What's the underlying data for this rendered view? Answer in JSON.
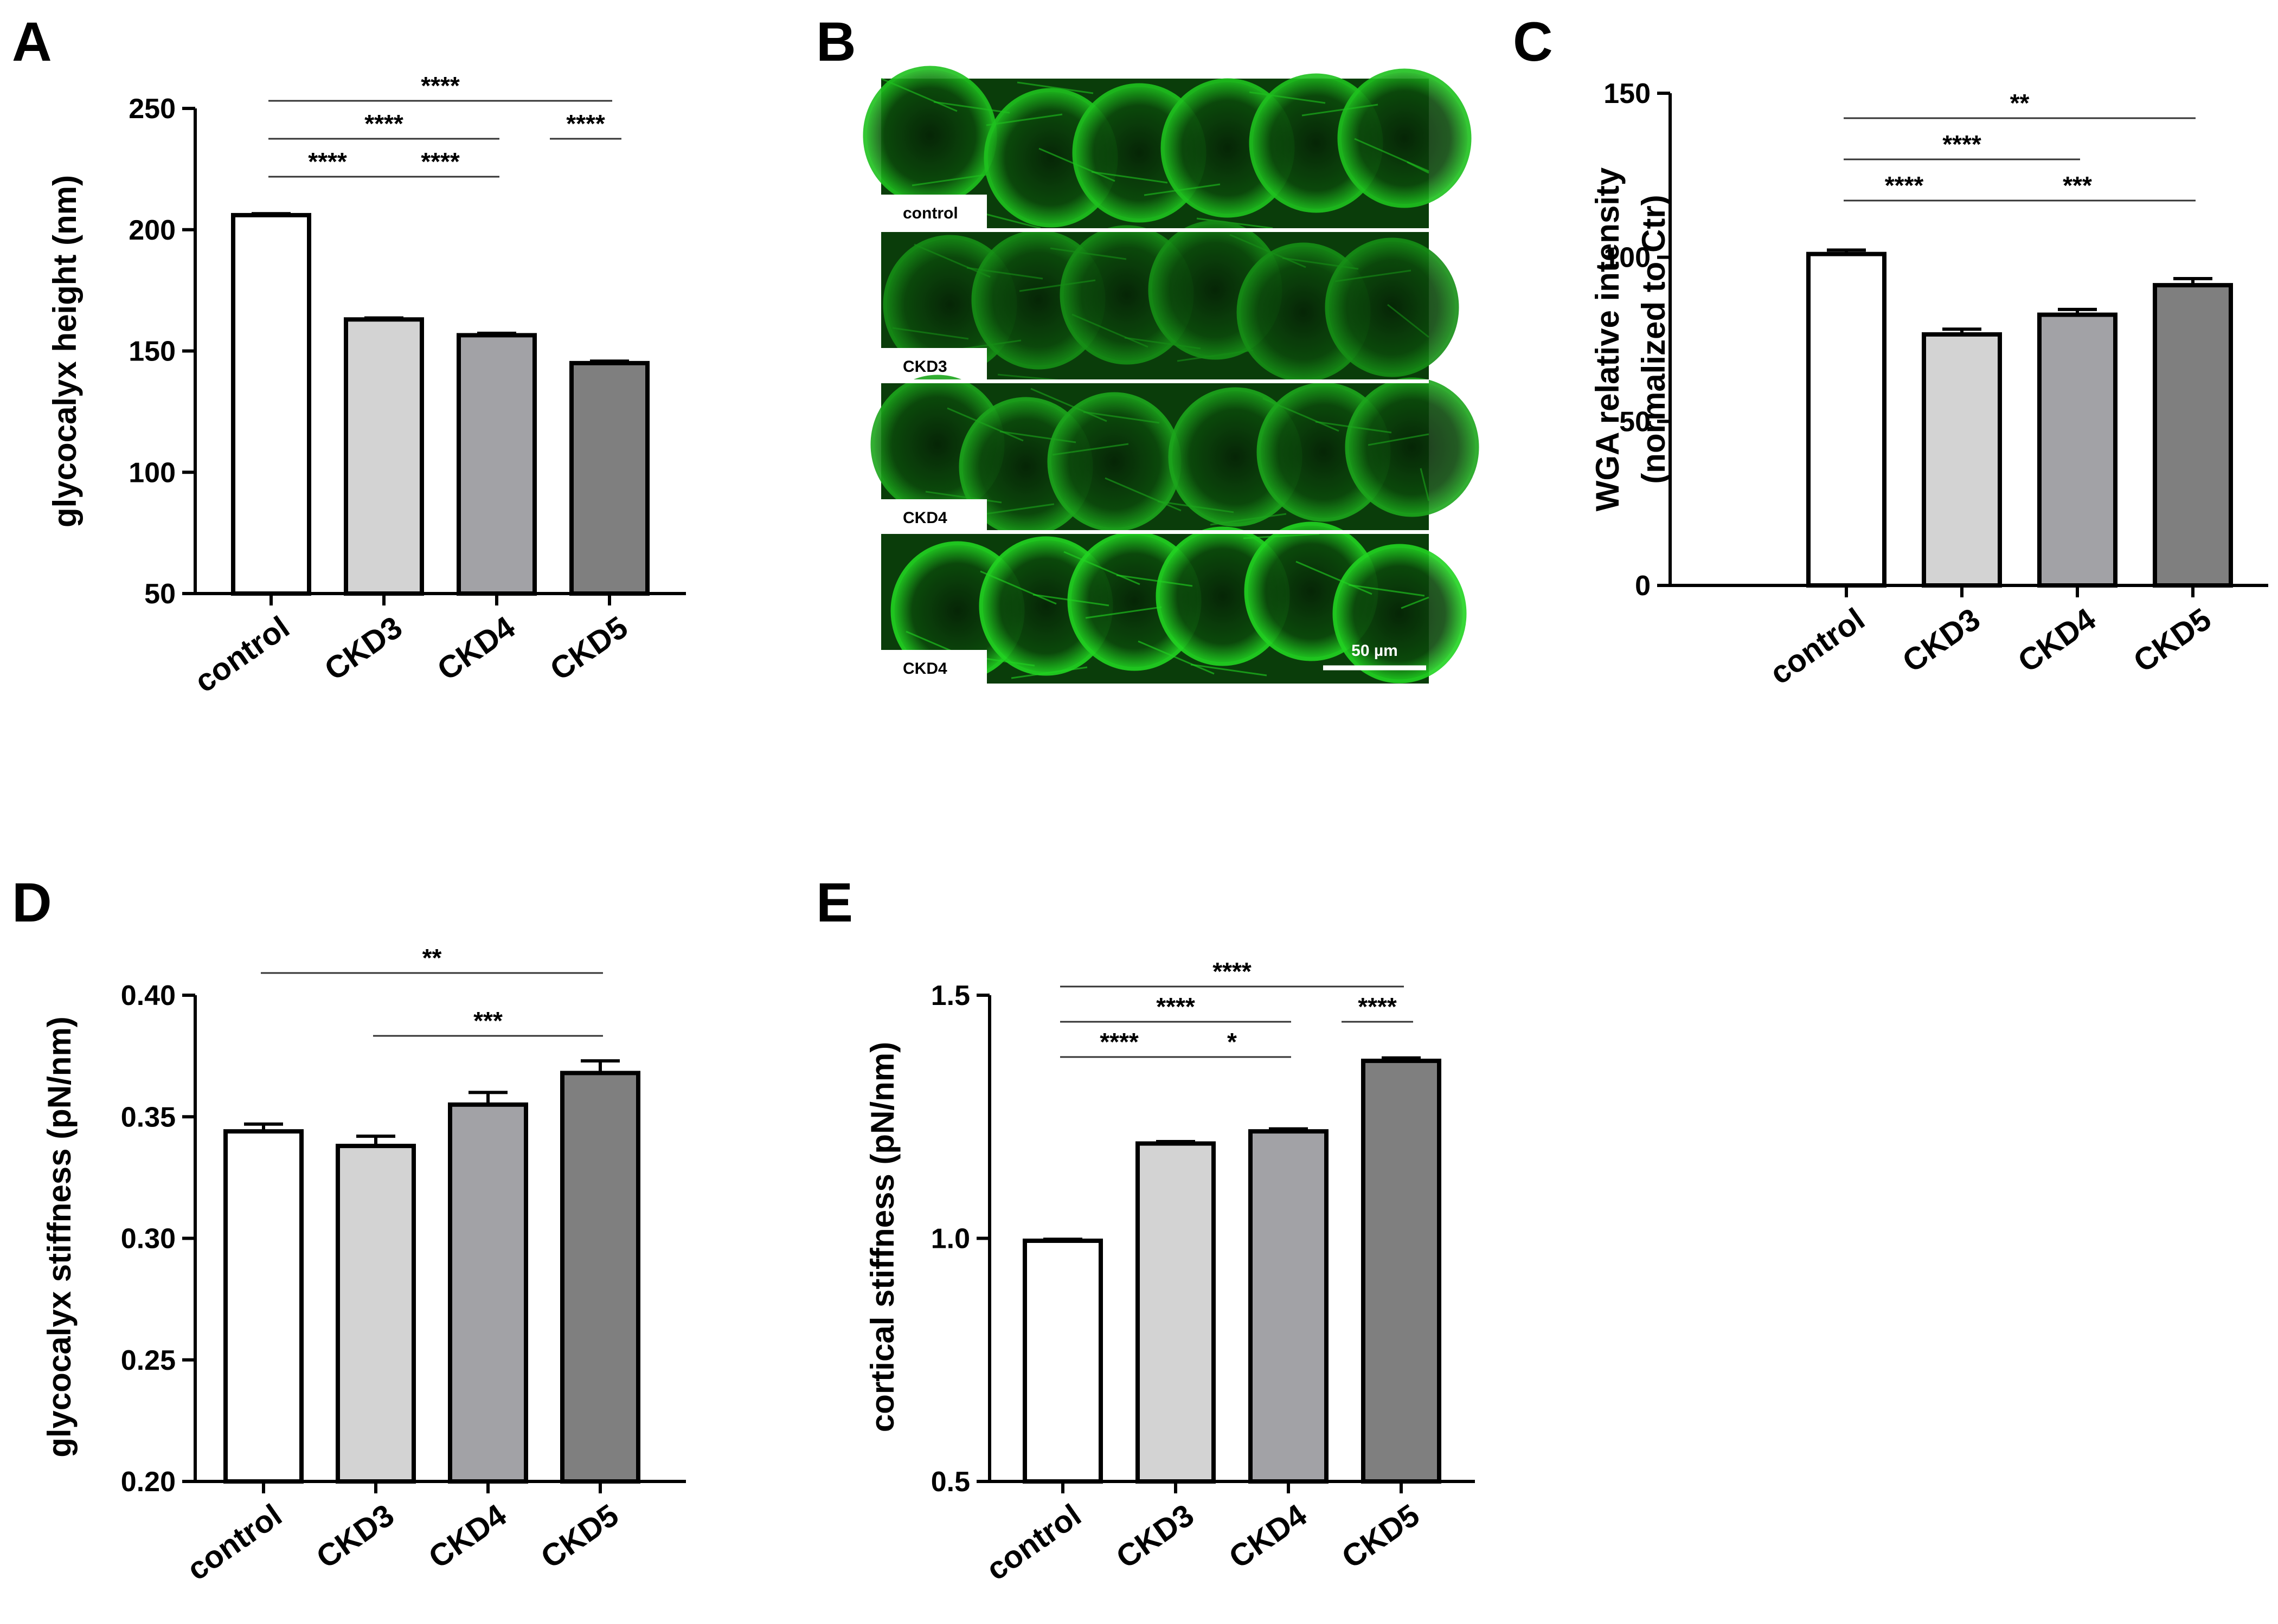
{
  "panel_letters": {
    "a": "A",
    "b": "B",
    "c": "C",
    "d": "D",
    "e": "E"
  },
  "palette": {
    "control": "#ffffff",
    "CKD3": "#d3d3d3",
    "CKD4": "#a2a2a6",
    "CKD5": "#7f7f7f",
    "ink": "#000000"
  },
  "micrograph": {
    "panels": [
      {
        "label": "control",
        "color": "#1fc21f"
      },
      {
        "label": "CKD3",
        "color": "#168f16"
      },
      {
        "label": "CKD4",
        "color": "#1ca61c"
      },
      {
        "label": "CKD4",
        "color": "#22d422"
      }
    ],
    "scale_bar": "50 µm"
  },
  "chart_data": [
    {
      "panel": "A",
      "type": "bar",
      "categories": [
        "control",
        "CKD3",
        "CKD4",
        "CKD5"
      ],
      "values": [
        206,
        163,
        156.5,
        145
      ],
      "errors": [
        0.6,
        0.6,
        0.8,
        0.8
      ],
      "ylabel": "glycocalyx height (nm)",
      "ylim": [
        50,
        250
      ],
      "yticks": [
        "50",
        "100",
        "150",
        "200",
        "250"
      ],
      "significance": [
        {
          "from": 0,
          "to": 3,
          "label": "****"
        },
        {
          "from": 0,
          "to": 2,
          "label": "****"
        },
        {
          "from": 3,
          "to": 3,
          "label": "****"
        },
        {
          "from": 0,
          "to": 1,
          "label": "****"
        },
        {
          "from": 1,
          "to": 2,
          "label": "****"
        }
      ]
    },
    {
      "panel": "C",
      "type": "bar",
      "categories": [
        "control",
        "CKD3",
        "CKD4",
        "CKD5"
      ],
      "values": [
        101,
        76.5,
        82.5,
        91.5
      ],
      "errors": [
        1.2,
        1.6,
        1.6,
        2.0
      ],
      "ylabel": "WGA relative intensity",
      "ylabel2": "(normalized to Ctr)",
      "ylim": [
        0,
        150
      ],
      "yticks": [
        "0",
        "50",
        "100",
        "150"
      ],
      "significance": [
        {
          "from": 0,
          "to": 3,
          "label": "**"
        },
        {
          "from": 0,
          "to": 2,
          "label": "****"
        },
        {
          "from": 0,
          "to": 1,
          "label": "****"
        },
        {
          "from": 1,
          "to": 3,
          "label": "***"
        }
      ]
    },
    {
      "panel": "D",
      "type": "bar",
      "categories": [
        "control",
        "CKD3",
        "CKD4",
        "CKD5"
      ],
      "values": [
        0.344,
        0.338,
        0.355,
        0.368
      ],
      "errors": [
        0.003,
        0.004,
        0.005,
        0.005
      ],
      "ylabel": "glycocalyx stiffness (pN/nm)",
      "ylim": [
        0.2,
        0.4
      ],
      "yticks": [
        "0.20",
        "0.25",
        "0.30",
        "0.35",
        "0.40"
      ],
      "significance": [
        {
          "from": 0,
          "to": 3,
          "label": "**"
        },
        {
          "from": 1,
          "to": 3,
          "label": "***"
        }
      ]
    },
    {
      "panel": "E",
      "type": "bar",
      "categories": [
        "control",
        "CKD3",
        "CKD4",
        "CKD5"
      ],
      "values": [
        0.995,
        1.195,
        1.22,
        1.365
      ],
      "errors": [
        0.003,
        0.004,
        0.005,
        0.006
      ],
      "ylabel": "cortical stiffness (pN/nm)",
      "ylim": [
        0.5,
        1.5
      ],
      "yticks": [
        "0.5",
        "1.0",
        "1.5"
      ],
      "significance": [
        {
          "from": 0,
          "to": 3,
          "label": "****"
        },
        {
          "from": 0,
          "to": 2,
          "label": "****"
        },
        {
          "from": 3,
          "to": 3,
          "label": "****"
        },
        {
          "from": 0,
          "to": 1,
          "label": "****"
        },
        {
          "from": 1,
          "to": 2,
          "label": "*"
        }
      ]
    }
  ]
}
